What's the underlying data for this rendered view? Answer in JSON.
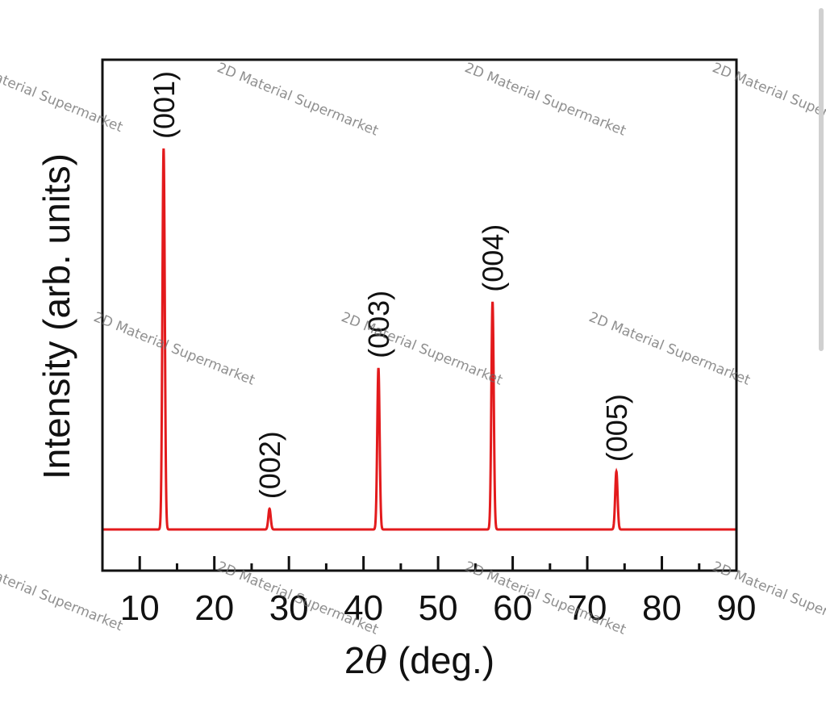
{
  "chart_data": {
    "type": "line",
    "title": "",
    "xlabel_prefix": "2",
    "xlabel_theta": "θ",
    "xlabel_suffix": " (deg.)",
    "ylabel": "Intensity (arb. units)",
    "xlim": [
      5,
      90
    ],
    "ylim": [
      0,
      100
    ],
    "xticks": [
      10,
      20,
      30,
      40,
      50,
      60,
      70,
      80,
      90
    ],
    "minor_xtick_step": 5,
    "yticks_shown": false,
    "grid": false,
    "legend": "none",
    "line_color": "#e31a1c",
    "baseline": 8,
    "peaks": [
      {
        "x": 13.2,
        "height": 100,
        "label": "(001)"
      },
      {
        "x": 27.4,
        "height": 13,
        "label": "(002)"
      },
      {
        "x": 42.0,
        "height": 47,
        "label": "(003)"
      },
      {
        "x": 57.3,
        "height": 63,
        "label": "(004)"
      },
      {
        "x": 73.9,
        "height": 22,
        "label": "(005)"
      }
    ]
  },
  "watermarks": [
    "2D Material Supermarket",
    "aterial Supermarket",
    "2D Material Superm"
  ]
}
